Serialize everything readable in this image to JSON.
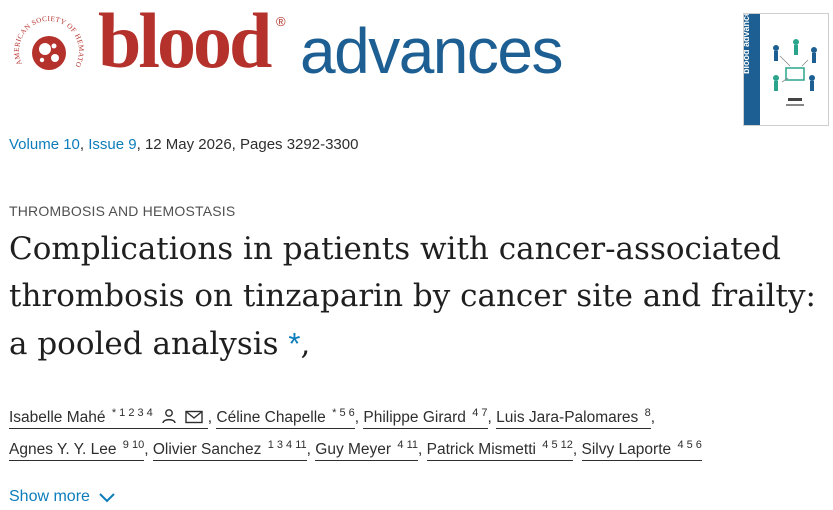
{
  "header": {
    "society_text": "AMERICAN SOCIETY OF HEMATOLOGY",
    "logo_blood": "blood",
    "logo_reg": "®",
    "logo_advances": "advances",
    "cover_label": "blood advances"
  },
  "issue": {
    "volume": "Volume 10",
    "issue": "Issue 9",
    "rest": ", 12 May 2026, Pages 3292-3300",
    "sep": ", "
  },
  "article": {
    "category": "THROMBOSIS AND HEMOSTASIS",
    "title": "Complications in patients with cancer-associated thrombosis on tinzaparin by cancer site and frailty: a pooled analysis",
    "title_asterisk": "*",
    "title_trailing": ","
  },
  "authors": [
    {
      "name": "Isabelle Mahé",
      "sup": "* 1 2 3 4"
    },
    {
      "name": "Céline Chapelle",
      "sup": "* 5 6"
    },
    {
      "name": "Philippe Girard",
      "sup": "4 7"
    },
    {
      "name": "Luis Jara-Palomares",
      "sup": "8"
    },
    {
      "name": "Agnes Y. Y. Lee",
      "sup": "9 10"
    },
    {
      "name": "Olivier Sanchez",
      "sup": "1 3 4 11"
    },
    {
      "name": "Guy Meyer",
      "sup": "4 11"
    },
    {
      "name": "Patrick Mismetti",
      "sup": "4 5 12"
    },
    {
      "name": "Silvy Laporte",
      "sup": "4 5 6"
    }
  ],
  "author_sep": ",",
  "show_more": "Show more",
  "colors": {
    "brand_red": "#b5312b",
    "brand_blue": "#1d5f92",
    "link": "#0c7dbb"
  }
}
